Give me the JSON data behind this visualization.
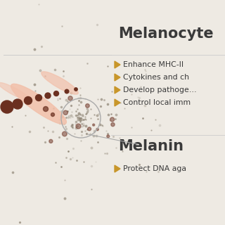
{
  "bg_color": "#eeeae3",
  "title1": "Melanocyte",
  "title2": "Melanin",
  "bullet_color": "#c8962a",
  "text_color": "#3a3a3a",
  "title_color": "#3a3a3a",
  "bullets1": [
    "Enhance MHC-II ",
    "Cytokines and ch",
    "Develop pathoge…",
    "Control local imm"
  ],
  "bullets2": [
    "Protect DNA aga"
  ],
  "cell_body_color": "#f2c0aa",
  "dot_dark_color": "#6b3020",
  "scatter_color": "#8a8070",
  "nucleus_edge_color": "#aaaaaa",
  "line_color": "#aaaaaa",
  "separator_color": "#cccccc",
  "figsize": [
    3.2,
    3.2
  ],
  "dpi": 100
}
